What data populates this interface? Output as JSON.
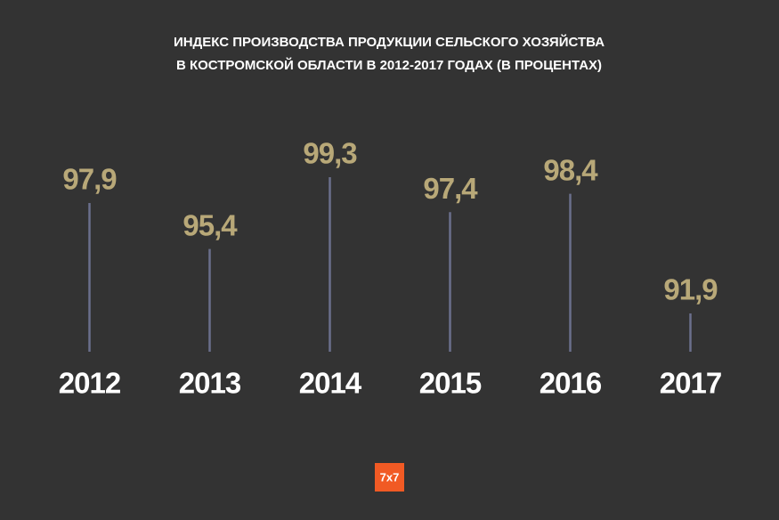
{
  "chart_data": {
    "type": "stem",
    "title": [
      "ИНДЕКС ПРОИЗВОДСТВА ПРОДУКЦИИ СЕЛЬСКОГО ХОЗЯЙСТВА",
      "В КОСТРОМСКОЙ ОБЛАСТИ В 2012-2017 ГОДАХ (В ПРОЦЕНТАХ)"
    ],
    "categories": [
      "2012",
      "2013",
      "2014",
      "2015",
      "2016",
      "2017"
    ],
    "values": [
      97.9,
      95.4,
      99.3,
      97.4,
      98.4,
      91.9
    ],
    "value_labels": [
      "97,9",
      "95,4",
      "99,3",
      "97,4",
      "98,4",
      "91,9"
    ],
    "color": "#6b6f8c",
    "label_color": "#b8a878",
    "logo": "7x7"
  }
}
